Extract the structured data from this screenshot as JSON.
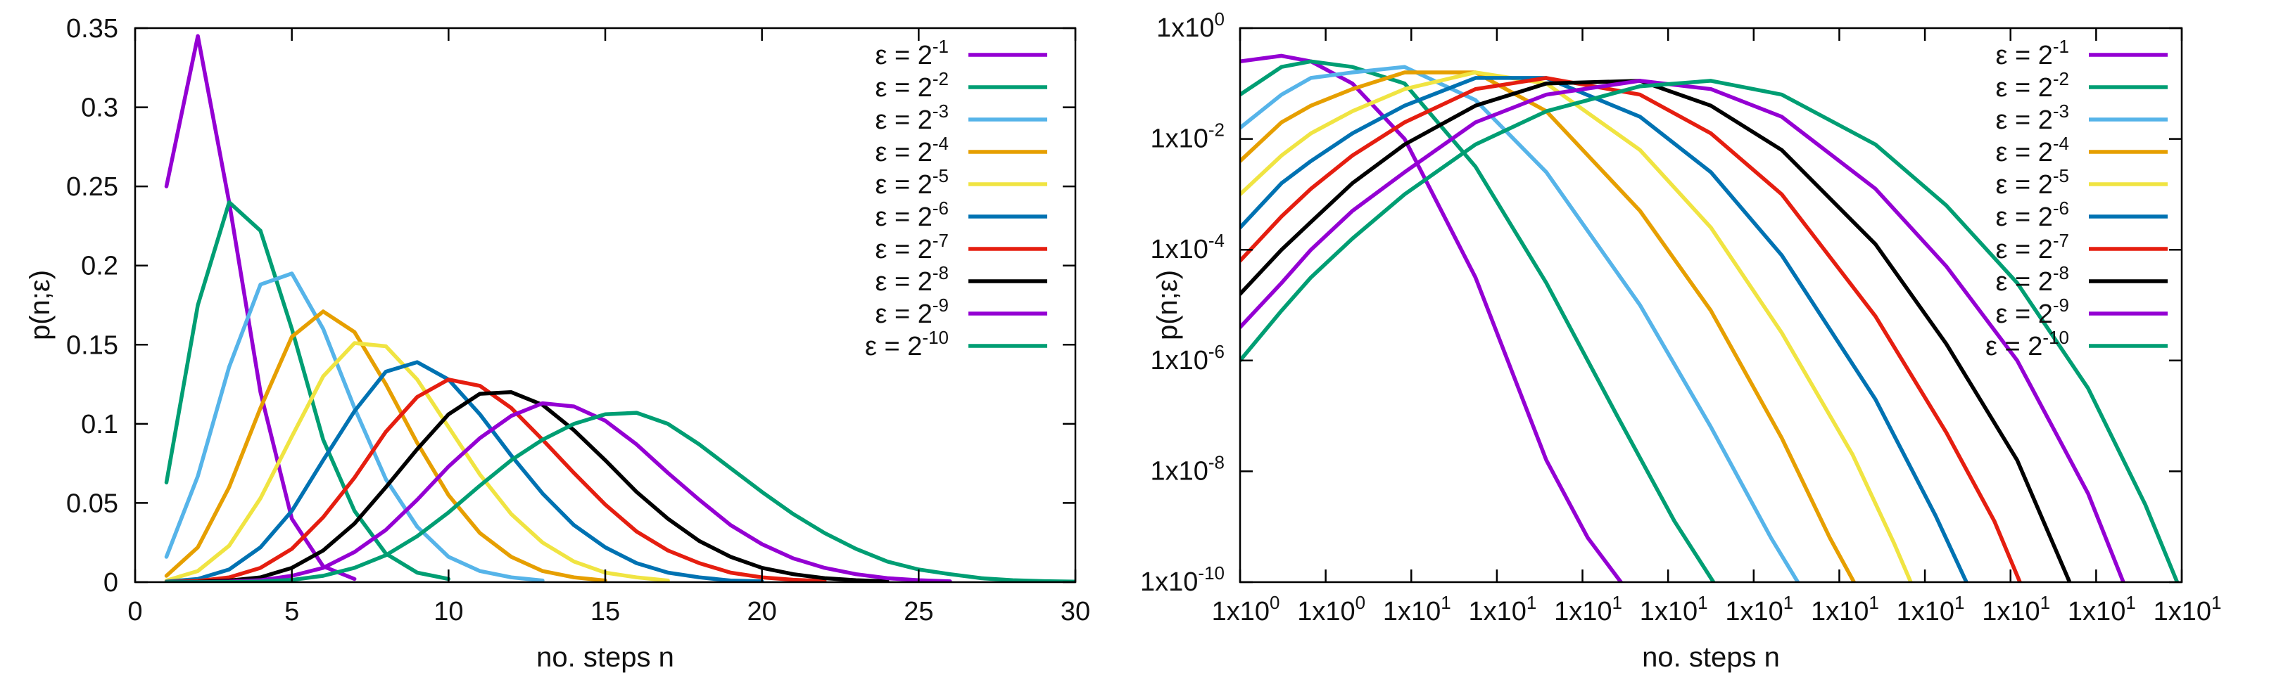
{
  "chart_data": [
    {
      "type": "line",
      "xlabel": "no. steps n",
      "ylabel": "p(n;ε)",
      "xlim": [
        0,
        30
      ],
      "ylim": [
        0,
        0.35
      ],
      "xticks": [
        "0",
        "5",
        "10",
        "15",
        "20",
        "25",
        "30"
      ],
      "yticks": [
        "0",
        "0.05",
        "0.1",
        "0.15",
        "0.2",
        "0.25",
        "0.3",
        "0.35"
      ],
      "legend_position": "top-right",
      "series": [
        {
          "name": "ε = 2^-1",
          "base": "ε = 2",
          "exp": "-1",
          "color": "#9400d3",
          "x": [
            1,
            2,
            3,
            4,
            5,
            6,
            7
          ],
          "values": [
            0.25,
            0.345,
            0.24,
            0.12,
            0.04,
            0.01,
            0.002
          ]
        },
        {
          "name": "ε = 2^-2",
          "base": "ε = 2",
          "exp": "-2",
          "color": "#009e73",
          "x": [
            1,
            2,
            3,
            4,
            5,
            6,
            7,
            8,
            9,
            10
          ],
          "values": [
            0.063,
            0.175,
            0.24,
            0.222,
            0.16,
            0.09,
            0.045,
            0.018,
            0.006,
            0.002
          ]
        },
        {
          "name": "ε = 2^-3",
          "base": "ε = 2",
          "exp": "-3",
          "color": "#56b4e9",
          "x": [
            1,
            2,
            3,
            4,
            5,
            6,
            7,
            8,
            9,
            10,
            11,
            12,
            13
          ],
          "values": [
            0.016,
            0.067,
            0.136,
            0.188,
            0.195,
            0.16,
            0.11,
            0.065,
            0.035,
            0.016,
            0.007,
            0.003,
            0.001
          ]
        },
        {
          "name": "ε = 2^-4",
          "base": "ε = 2",
          "exp": "-4",
          "color": "#e69f00",
          "x": [
            1,
            2,
            3,
            4,
            5,
            6,
            7,
            8,
            9,
            10,
            11,
            12,
            13,
            14,
            15
          ],
          "values": [
            0.004,
            0.022,
            0.06,
            0.11,
            0.155,
            0.171,
            0.158,
            0.125,
            0.088,
            0.055,
            0.031,
            0.016,
            0.007,
            0.003,
            0.001
          ]
        },
        {
          "name": "ε = 2^-5",
          "base": "ε = 2",
          "exp": "-5",
          "color": "#f0e442",
          "x": [
            1,
            2,
            3,
            4,
            5,
            6,
            7,
            8,
            9,
            10,
            11,
            12,
            13,
            14,
            15,
            16,
            17
          ],
          "values": [
            0.001,
            0.007,
            0.023,
            0.053,
            0.092,
            0.13,
            0.151,
            0.149,
            0.128,
            0.098,
            0.068,
            0.043,
            0.025,
            0.013,
            0.006,
            0.003,
            0.001
          ]
        },
        {
          "name": "ε = 2^-6",
          "base": "ε = 2",
          "exp": "-6",
          "color": "#0072b2",
          "x": [
            1,
            2,
            3,
            4,
            5,
            6,
            7,
            8,
            9,
            10,
            11,
            12,
            13,
            14,
            15,
            16,
            17,
            18,
            19,
            20
          ],
          "values": [
            0.0003,
            0.002,
            0.008,
            0.022,
            0.045,
            0.077,
            0.108,
            0.133,
            0.139,
            0.128,
            0.106,
            0.08,
            0.056,
            0.036,
            0.022,
            0.012,
            0.006,
            0.003,
            0.001,
            0.0005
          ]
        },
        {
          "name": "ε = 2^-7",
          "base": "ε = 2",
          "exp": "-7",
          "color": "#e51e10",
          "x": [
            1,
            2,
            3,
            4,
            5,
            6,
            7,
            8,
            9,
            10,
            11,
            12,
            13,
            14,
            15,
            16,
            17,
            18,
            19,
            20,
            21,
            22
          ],
          "values": [
            0.0001,
            0.0007,
            0.003,
            0.009,
            0.021,
            0.041,
            0.066,
            0.095,
            0.117,
            0.128,
            0.124,
            0.11,
            0.09,
            0.069,
            0.049,
            0.032,
            0.02,
            0.012,
            0.006,
            0.003,
            0.0015,
            0.0007
          ]
        },
        {
          "name": "ε = 2^-8",
          "base": "ε = 2",
          "exp": "-8",
          "color": "#000000",
          "x": [
            1,
            2,
            3,
            4,
            5,
            6,
            7,
            8,
            9,
            10,
            11,
            12,
            13,
            14,
            15,
            16,
            17,
            18,
            19,
            20,
            21,
            22,
            23,
            24
          ],
          "values": [
            0,
            0.0002,
            0.001,
            0.003,
            0.009,
            0.02,
            0.037,
            0.06,
            0.084,
            0.106,
            0.119,
            0.12,
            0.112,
            0.096,
            0.077,
            0.057,
            0.04,
            0.026,
            0.016,
            0.009,
            0.005,
            0.0025,
            0.0012,
            0.0005
          ]
        },
        {
          "name": "ε = 2^-9",
          "base": "ε = 2",
          "exp": "-9",
          "color": "#9400d3",
          "x": [
            1,
            2,
            3,
            4,
            5,
            6,
            7,
            8,
            9,
            10,
            11,
            12,
            13,
            14,
            15,
            16,
            17,
            18,
            19,
            20,
            21,
            22,
            23,
            24,
            25,
            26
          ],
          "values": [
            0,
            0,
            0.0003,
            0.0012,
            0.004,
            0.009,
            0.019,
            0.033,
            0.052,
            0.073,
            0.091,
            0.105,
            0.113,
            0.111,
            0.102,
            0.087,
            0.069,
            0.052,
            0.036,
            0.024,
            0.015,
            0.009,
            0.005,
            0.0025,
            0.0012,
            0.0005
          ]
        },
        {
          "name": "ε = 2^-10",
          "base": "ε = 2",
          "exp": "-10",
          "color": "#009e73",
          "x": [
            1,
            2,
            3,
            4,
            5,
            6,
            7,
            8,
            9,
            10,
            11,
            12,
            13,
            14,
            15,
            16,
            17,
            18,
            19,
            20,
            21,
            22,
            23,
            24,
            25,
            26,
            27,
            28,
            29,
            30
          ],
          "values": [
            0,
            0,
            0.0001,
            0.0004,
            0.0014,
            0.004,
            0.009,
            0.017,
            0.029,
            0.044,
            0.061,
            0.077,
            0.09,
            0.1,
            0.106,
            0.107,
            0.1,
            0.087,
            0.072,
            0.057,
            0.043,
            0.031,
            0.021,
            0.013,
            0.008,
            0.005,
            0.0025,
            0.0012,
            0.0006,
            0.0003
          ]
        }
      ]
    },
    {
      "type": "line",
      "xscale": "log",
      "yscale": "log",
      "xlabel": "no. steps n",
      "ylabel": "p(n;ε)",
      "xlim": [
        1,
        10000
      ],
      "ylim": [
        -10,
        0
      ],
      "xticks": [
        "1x10",
        "1x10",
        "1x10",
        "1x10",
        "1x10",
        "1x10",
        "1x10",
        "1x10",
        "1x10",
        "1x10",
        "1x10",
        "1x10"
      ],
      "xtick_exps": [
        "0",
        "0",
        "1",
        "1",
        "1",
        "1",
        "1",
        "1",
        "1",
        "1",
        "1",
        "1"
      ],
      "yticks": [
        "1x10",
        "1x10",
        "1x10",
        "1x10",
        "1x10",
        "1x10"
      ],
      "ytick_exps": [
        "-10",
        "-8",
        "-6",
        "-4",
        "-2",
        "0"
      ],
      "legend_position": "top-right",
      "series": [
        {
          "name": "ε = 2^-1",
          "base": "ε = 2",
          "exp": "-1",
          "color": "#9400d3",
          "x": [
            1,
            1.5,
            2,
            3,
            5,
            10,
            20,
            30,
            45
          ],
          "values": [
            -0.6,
            -0.5,
            -0.6,
            -1.0,
            -2.0,
            -4.5,
            -7.8,
            -9.2,
            -10.2
          ]
        },
        {
          "name": "ε = 2^-2",
          "base": "ε = 2",
          "exp": "-2",
          "color": "#009e73",
          "x": [
            1,
            1.5,
            2,
            3,
            5,
            10,
            20,
            40,
            70,
            110
          ],
          "values": [
            -1.2,
            -0.7,
            -0.6,
            -0.7,
            -1.0,
            -2.5,
            -4.6,
            -7.0,
            -8.9,
            -10.2
          ]
        },
        {
          "name": "ε = 2^-3",
          "base": "ε = 2",
          "exp": "-3",
          "color": "#56b4e9",
          "x": [
            1,
            1.5,
            2,
            3,
            5,
            10,
            20,
            50,
            100,
            180,
            250
          ],
          "values": [
            -1.8,
            -1.2,
            -0.9,
            -0.8,
            -0.7,
            -1.3,
            -2.6,
            -5.0,
            -7.2,
            -9.2,
            -10.2
          ]
        },
        {
          "name": "ε = 2^-4",
          "base": "ε = 2",
          "exp": "-4",
          "color": "#e69f00",
          "x": [
            1,
            1.5,
            2,
            3,
            5,
            10,
            20,
            50,
            100,
            200,
            320,
            430
          ],
          "values": [
            -2.4,
            -1.7,
            -1.4,
            -1.1,
            -0.8,
            -0.8,
            -1.5,
            -3.3,
            -5.1,
            -7.4,
            -9.2,
            -10.2
          ]
        },
        {
          "name": "ε = 2^-5",
          "base": "ε = 2",
          "exp": "-5",
          "color": "#f0e442",
          "x": [
            1,
            1.5,
            2,
            3,
            5,
            10,
            20,
            50,
            100,
            200,
            400,
            600,
            740
          ],
          "values": [
            -3.0,
            -2.3,
            -1.9,
            -1.5,
            -1.1,
            -0.8,
            -1.0,
            -2.2,
            -3.6,
            -5.5,
            -7.7,
            -9.3,
            -10.2
          ]
        },
        {
          "name": "ε = 2^-6",
          "base": "ε = 2",
          "exp": "-6",
          "color": "#0072b2",
          "x": [
            1,
            1.5,
            2,
            3,
            5,
            10,
            20,
            50,
            100,
            200,
            500,
            900,
            1280
          ],
          "values": [
            -3.6,
            -2.8,
            -2.4,
            -1.9,
            -1.4,
            -0.9,
            -0.9,
            -1.6,
            -2.6,
            -4.1,
            -6.7,
            -8.8,
            -10.2
          ]
        },
        {
          "name": "ε = 2^-7",
          "base": "ε = 2",
          "exp": "-7",
          "color": "#e51e10",
          "x": [
            1,
            1.5,
            2,
            3,
            5,
            10,
            20,
            50,
            100,
            200,
            500,
            1000,
            1600,
            2150
          ],
          "values": [
            -4.2,
            -3.4,
            -2.9,
            -2.3,
            -1.7,
            -1.1,
            -0.9,
            -1.2,
            -1.9,
            -3.0,
            -5.2,
            -7.3,
            -8.9,
            -10.2
          ]
        },
        {
          "name": "ε = 2^-8",
          "base": "ε = 2",
          "exp": "-8",
          "color": "#000000",
          "x": [
            1,
            1.5,
            2,
            3,
            5,
            10,
            20,
            50,
            100,
            200,
            500,
            1000,
            2000,
            3500
          ],
          "values": [
            -4.8,
            -4.0,
            -3.5,
            -2.8,
            -2.1,
            -1.4,
            -1.0,
            -0.95,
            -1.4,
            -2.2,
            -3.9,
            -5.7,
            -7.8,
            -10.2
          ]
        },
        {
          "name": "ε = 2^-9",
          "base": "ε = 2",
          "exp": "-9",
          "color": "#9400d3",
          "x": [
            1,
            1.5,
            2,
            3,
            5,
            10,
            20,
            50,
            100,
            200,
            500,
            1000,
            2000,
            4000,
            5900
          ],
          "values": [
            -5.4,
            -4.6,
            -4.0,
            -3.3,
            -2.6,
            -1.7,
            -1.2,
            -0.95,
            -1.1,
            -1.6,
            -2.9,
            -4.3,
            -6.0,
            -8.4,
            -10.2
          ]
        },
        {
          "name": "ε = 2^-10",
          "base": "ε = 2",
          "exp": "-10",
          "color": "#009e73",
          "x": [
            1,
            1.5,
            2,
            3,
            5,
            10,
            20,
            50,
            100,
            200,
            500,
            1000,
            2000,
            4000,
            7000,
            10000
          ],
          "values": [
            -6.0,
            -5.1,
            -4.5,
            -3.8,
            -3.0,
            -2.1,
            -1.5,
            -1.05,
            -0.95,
            -1.2,
            -2.1,
            -3.2,
            -4.6,
            -6.5,
            -8.6,
            -10.2
          ]
        }
      ]
    }
  ]
}
